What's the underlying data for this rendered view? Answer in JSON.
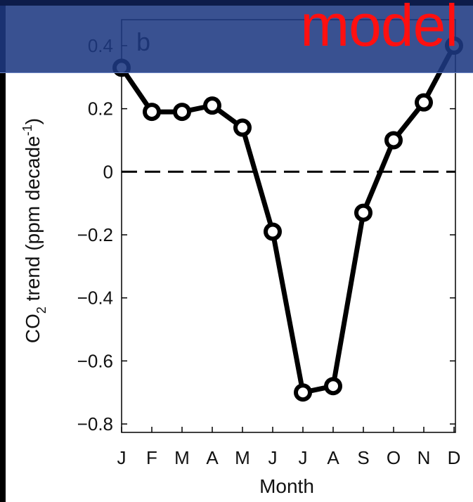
{
  "overlay": {
    "label": "model",
    "accent": "#ff1010",
    "band_color": "#1e3982"
  },
  "chart_data": {
    "type": "line",
    "panel_label": "b",
    "xlabel": "Month",
    "ylabel": "CO2 trend (ppm decade-1)",
    "ylabel_parts": {
      "main": "CO",
      "sub": "2",
      "middle": " trend (ppm decade",
      "sup": "-1",
      "end": ")"
    },
    "categories": [
      "J",
      "F",
      "M",
      "A",
      "M",
      "J",
      "J",
      "A",
      "S",
      "O",
      "N",
      "D"
    ],
    "series": [
      {
        "values": [
          0.33,
          0.19,
          0.19,
          0.21,
          0.14,
          -0.19,
          -0.7,
          -0.68,
          -0.13,
          0.1,
          0.22,
          0.4
        ]
      }
    ],
    "ylim": [
      -0.82,
      0.44
    ],
    "yticks": [
      -0.8,
      -0.6,
      -0.4,
      -0.2,
      0,
      0.2,
      0.4
    ],
    "ytick_labels": [
      "−0.8",
      "−0.6",
      "−0.4",
      "−0.2",
      "0",
      "0.2",
      "0.4"
    ],
    "zero_line": "dashed",
    "marker": "open circle",
    "line_color": "#000000",
    "grid": false
  }
}
